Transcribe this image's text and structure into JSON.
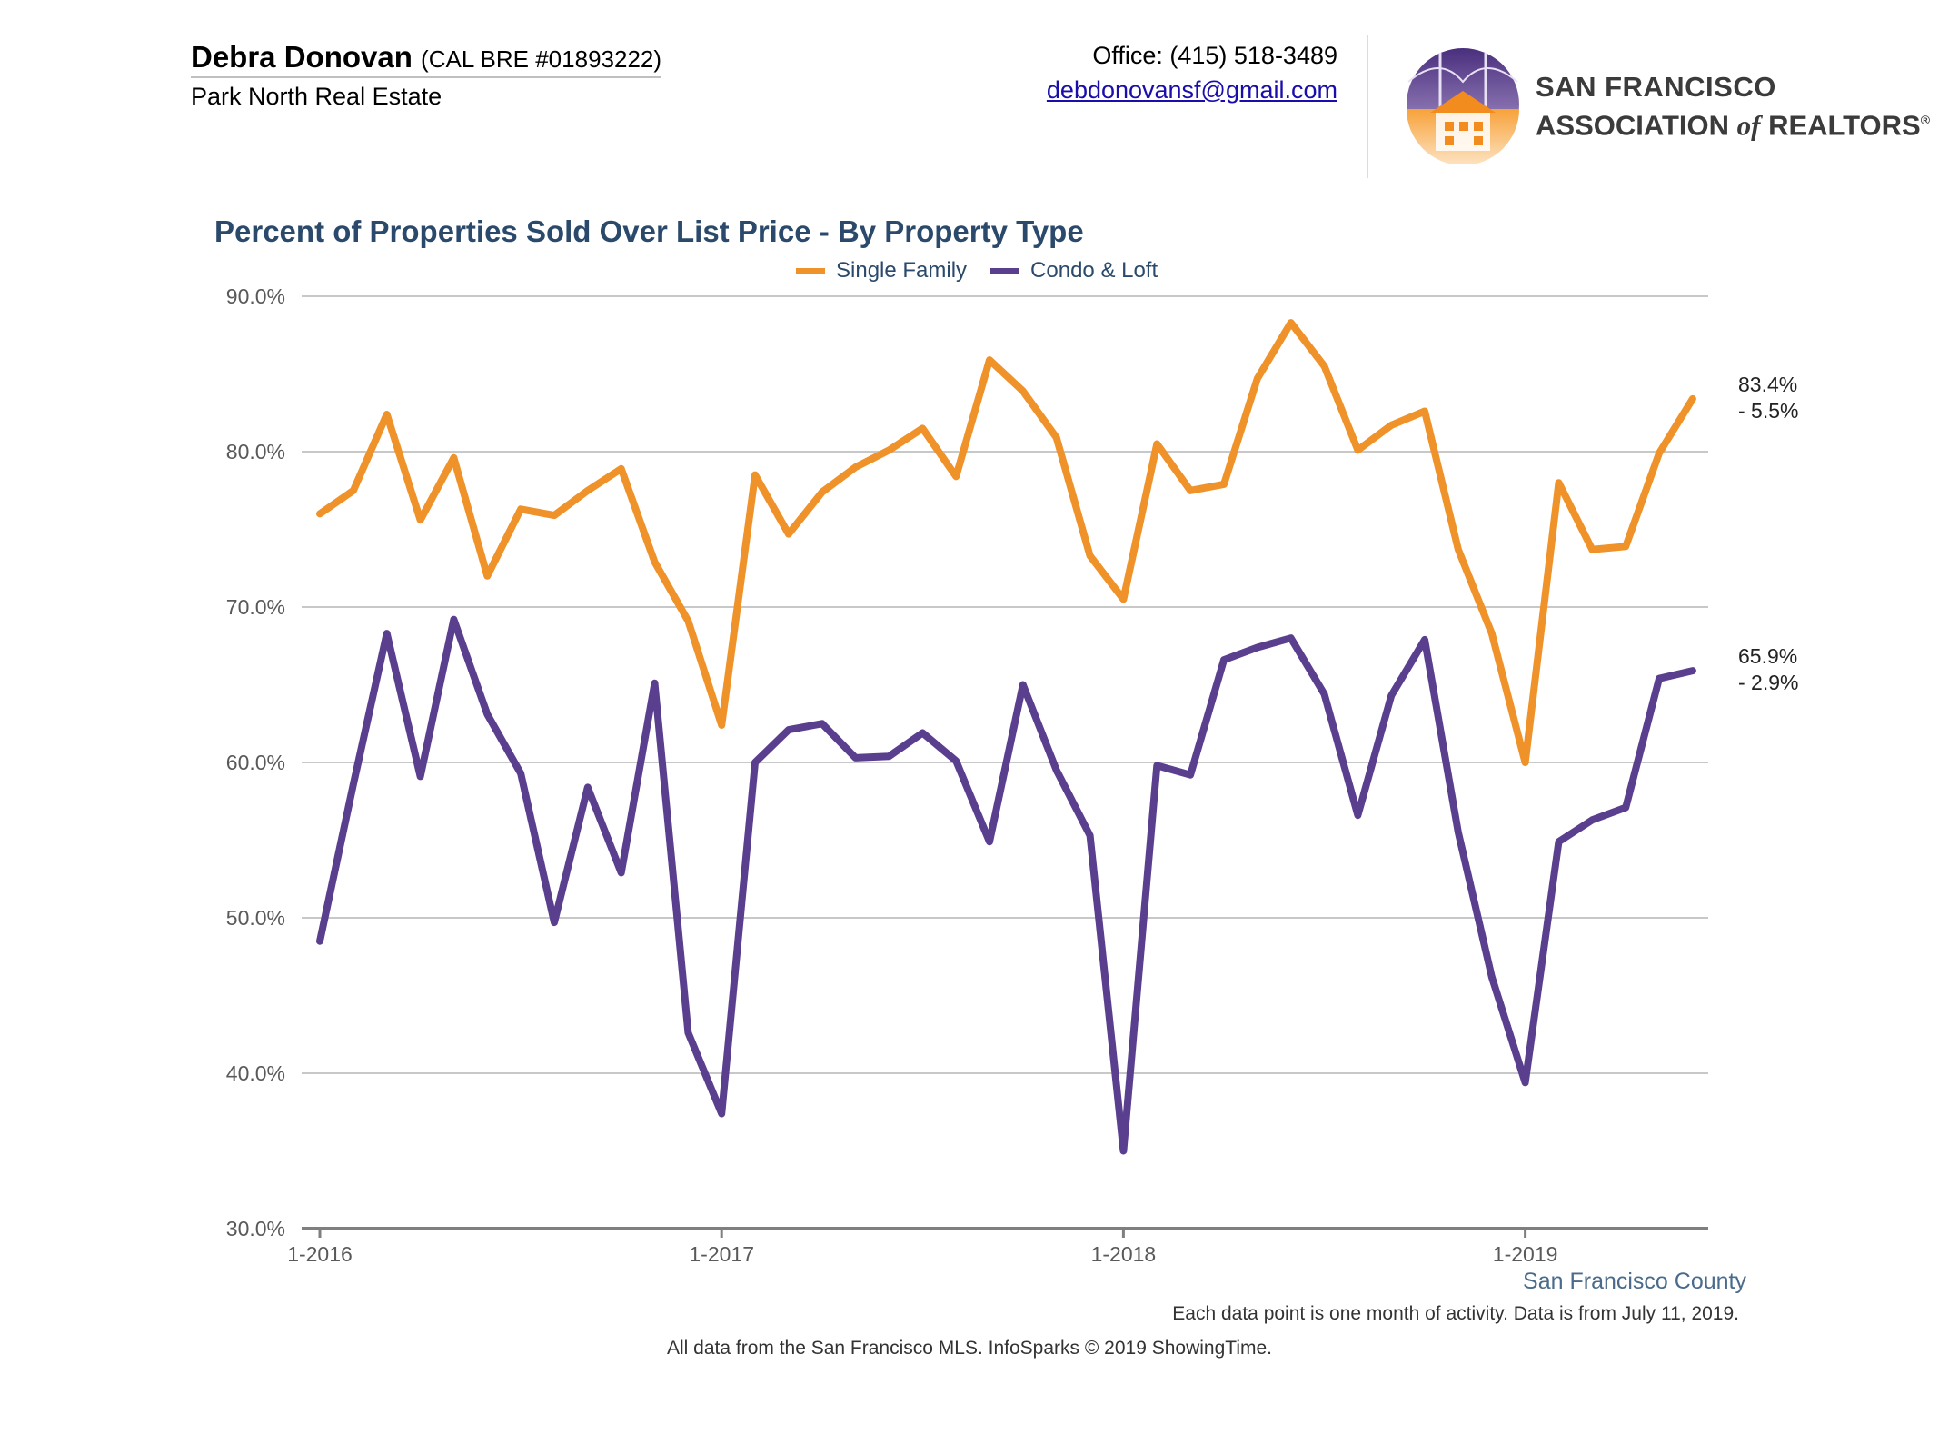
{
  "header": {
    "agent_name": "Debra Donovan",
    "agent_license": "(CAL BRE #01893222)",
    "company": "Park North Real Estate",
    "office_phone": "Office: (415) 518-3489",
    "email": "debdonovansf@gmail.com",
    "logo_line1": "SAN FRANCISCO",
    "logo_line2_a": "ASSOCIATION",
    "logo_line2_b": "of",
    "logo_line2_c": "REALTORS",
    "logo_reg": "®"
  },
  "footer": {
    "county": "San Francisco County",
    "note": "Each data point is one month of activity. Data is from July 11, 2019.",
    "source": "All data from the San Francisco MLS. InfoSparks © 2019 ShowingTime."
  },
  "colors": {
    "single_family": "#ef9229",
    "condo": "#5a3f8f",
    "grid": "#c8c8c8",
    "axis": "#7f7f7f",
    "title": "#2b4a6b"
  },
  "chart_data": {
    "type": "line",
    "title": "Percent of Properties Sold Over List Price - By Property Type",
    "xlabel": "",
    "ylabel": "",
    "ylim": [
      30,
      90
    ],
    "yticks": [
      30,
      40,
      50,
      60,
      70,
      80,
      90
    ],
    "ytick_labels": [
      "30.0%",
      "40.0%",
      "50.0%",
      "60.0%",
      "70.0%",
      "80.0%",
      "90.0%"
    ],
    "x": [
      "1-2016",
      "2-2016",
      "3-2016",
      "4-2016",
      "5-2016",
      "6-2016",
      "7-2016",
      "8-2016",
      "9-2016",
      "10-2016",
      "11-2016",
      "12-2016",
      "1-2017",
      "2-2017",
      "3-2017",
      "4-2017",
      "5-2017",
      "6-2017",
      "7-2017",
      "8-2017",
      "9-2017",
      "10-2017",
      "11-2017",
      "12-2017",
      "1-2018",
      "2-2018",
      "3-2018",
      "4-2018",
      "5-2018",
      "6-2018",
      "7-2018",
      "8-2018",
      "9-2018",
      "10-2018",
      "11-2018",
      "12-2018",
      "1-2019",
      "2-2019",
      "3-2019",
      "4-2019",
      "5-2019",
      "6-2019"
    ],
    "xtick_labels": [
      "1-2016",
      "1-2017",
      "1-2018",
      "1-2019"
    ],
    "grid": true,
    "legend_position": "top-center",
    "series": [
      {
        "name": "Single Family",
        "values": [
          76.0,
          77.5,
          82.4,
          75.6,
          79.6,
          72.0,
          76.3,
          75.9,
          77.5,
          78.9,
          72.9,
          69.1,
          62.4,
          78.5,
          74.7,
          77.4,
          79.0,
          80.1,
          81.5,
          78.4,
          85.9,
          83.9,
          80.9,
          73.3,
          70.5,
          80.5,
          77.5,
          77.9,
          84.7,
          88.3,
          85.5,
          80.1,
          81.7,
          82.6,
          73.7,
          68.3,
          60.0,
          78.0,
          73.7,
          73.9,
          79.9,
          83.4
        ],
        "end_label": "83.4%",
        "end_change": "- 5.5%"
      },
      {
        "name": "Condo & Loft",
        "values": [
          48.5,
          58.6,
          68.3,
          59.1,
          69.2,
          63.1,
          59.3,
          49.7,
          58.4,
          52.9,
          65.1,
          42.6,
          37.4,
          60.0,
          62.1,
          62.5,
          60.3,
          60.4,
          61.9,
          60.1,
          54.9,
          65.0,
          59.5,
          55.3,
          35.0,
          59.8,
          59.2,
          66.6,
          67.4,
          68.0,
          64.4,
          56.6,
          64.3,
          67.9,
          55.5,
          46.2,
          39.4,
          54.9,
          56.3,
          57.1,
          65.4,
          65.9
        ],
        "end_label": "65.9%",
        "end_change": "- 2.9%"
      }
    ]
  }
}
